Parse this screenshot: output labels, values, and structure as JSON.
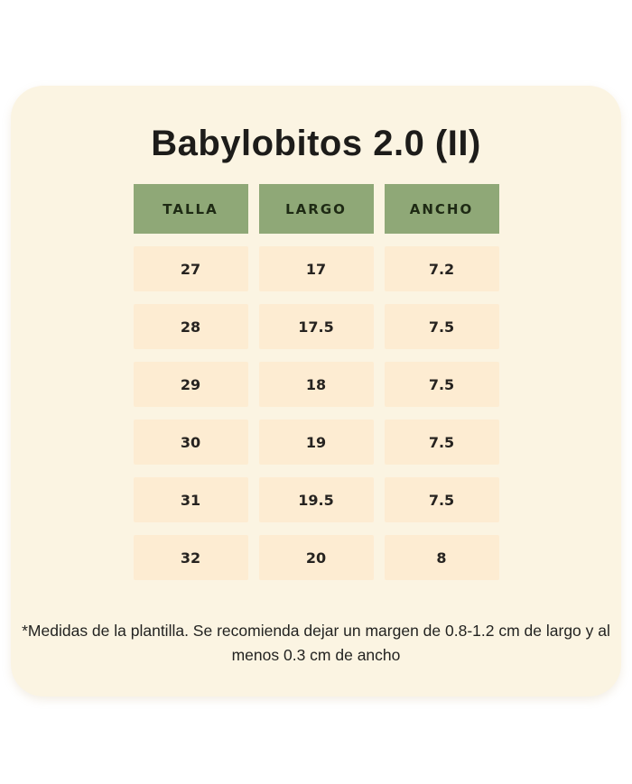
{
  "title": "Babylobitos 2.0 (II)",
  "table": {
    "headers": [
      "TALLA",
      "LARGO",
      "ANCHO"
    ],
    "rows": [
      [
        "27",
        "17",
        "7.2"
      ],
      [
        "28",
        "17.5",
        "7.5"
      ],
      [
        "29",
        "18",
        "7.5"
      ],
      [
        "30",
        "19",
        "7.5"
      ],
      [
        "31",
        "19.5",
        "7.5"
      ],
      [
        "32",
        "20",
        "8"
      ]
    ]
  },
  "footnote": "*Medidas de la plantilla. Se recomienda dejar un margen de 0.8-1.2 cm de largo y al menos 0.3 cm de ancho",
  "colors": {
    "page_bg": "#ffffff",
    "card_bg": "#fbf4e2",
    "cell_bg": "#fdecd2",
    "header_bg": "#8fa877",
    "header_text": "#1e2a14",
    "title_text": "#1d1c1a"
  }
}
